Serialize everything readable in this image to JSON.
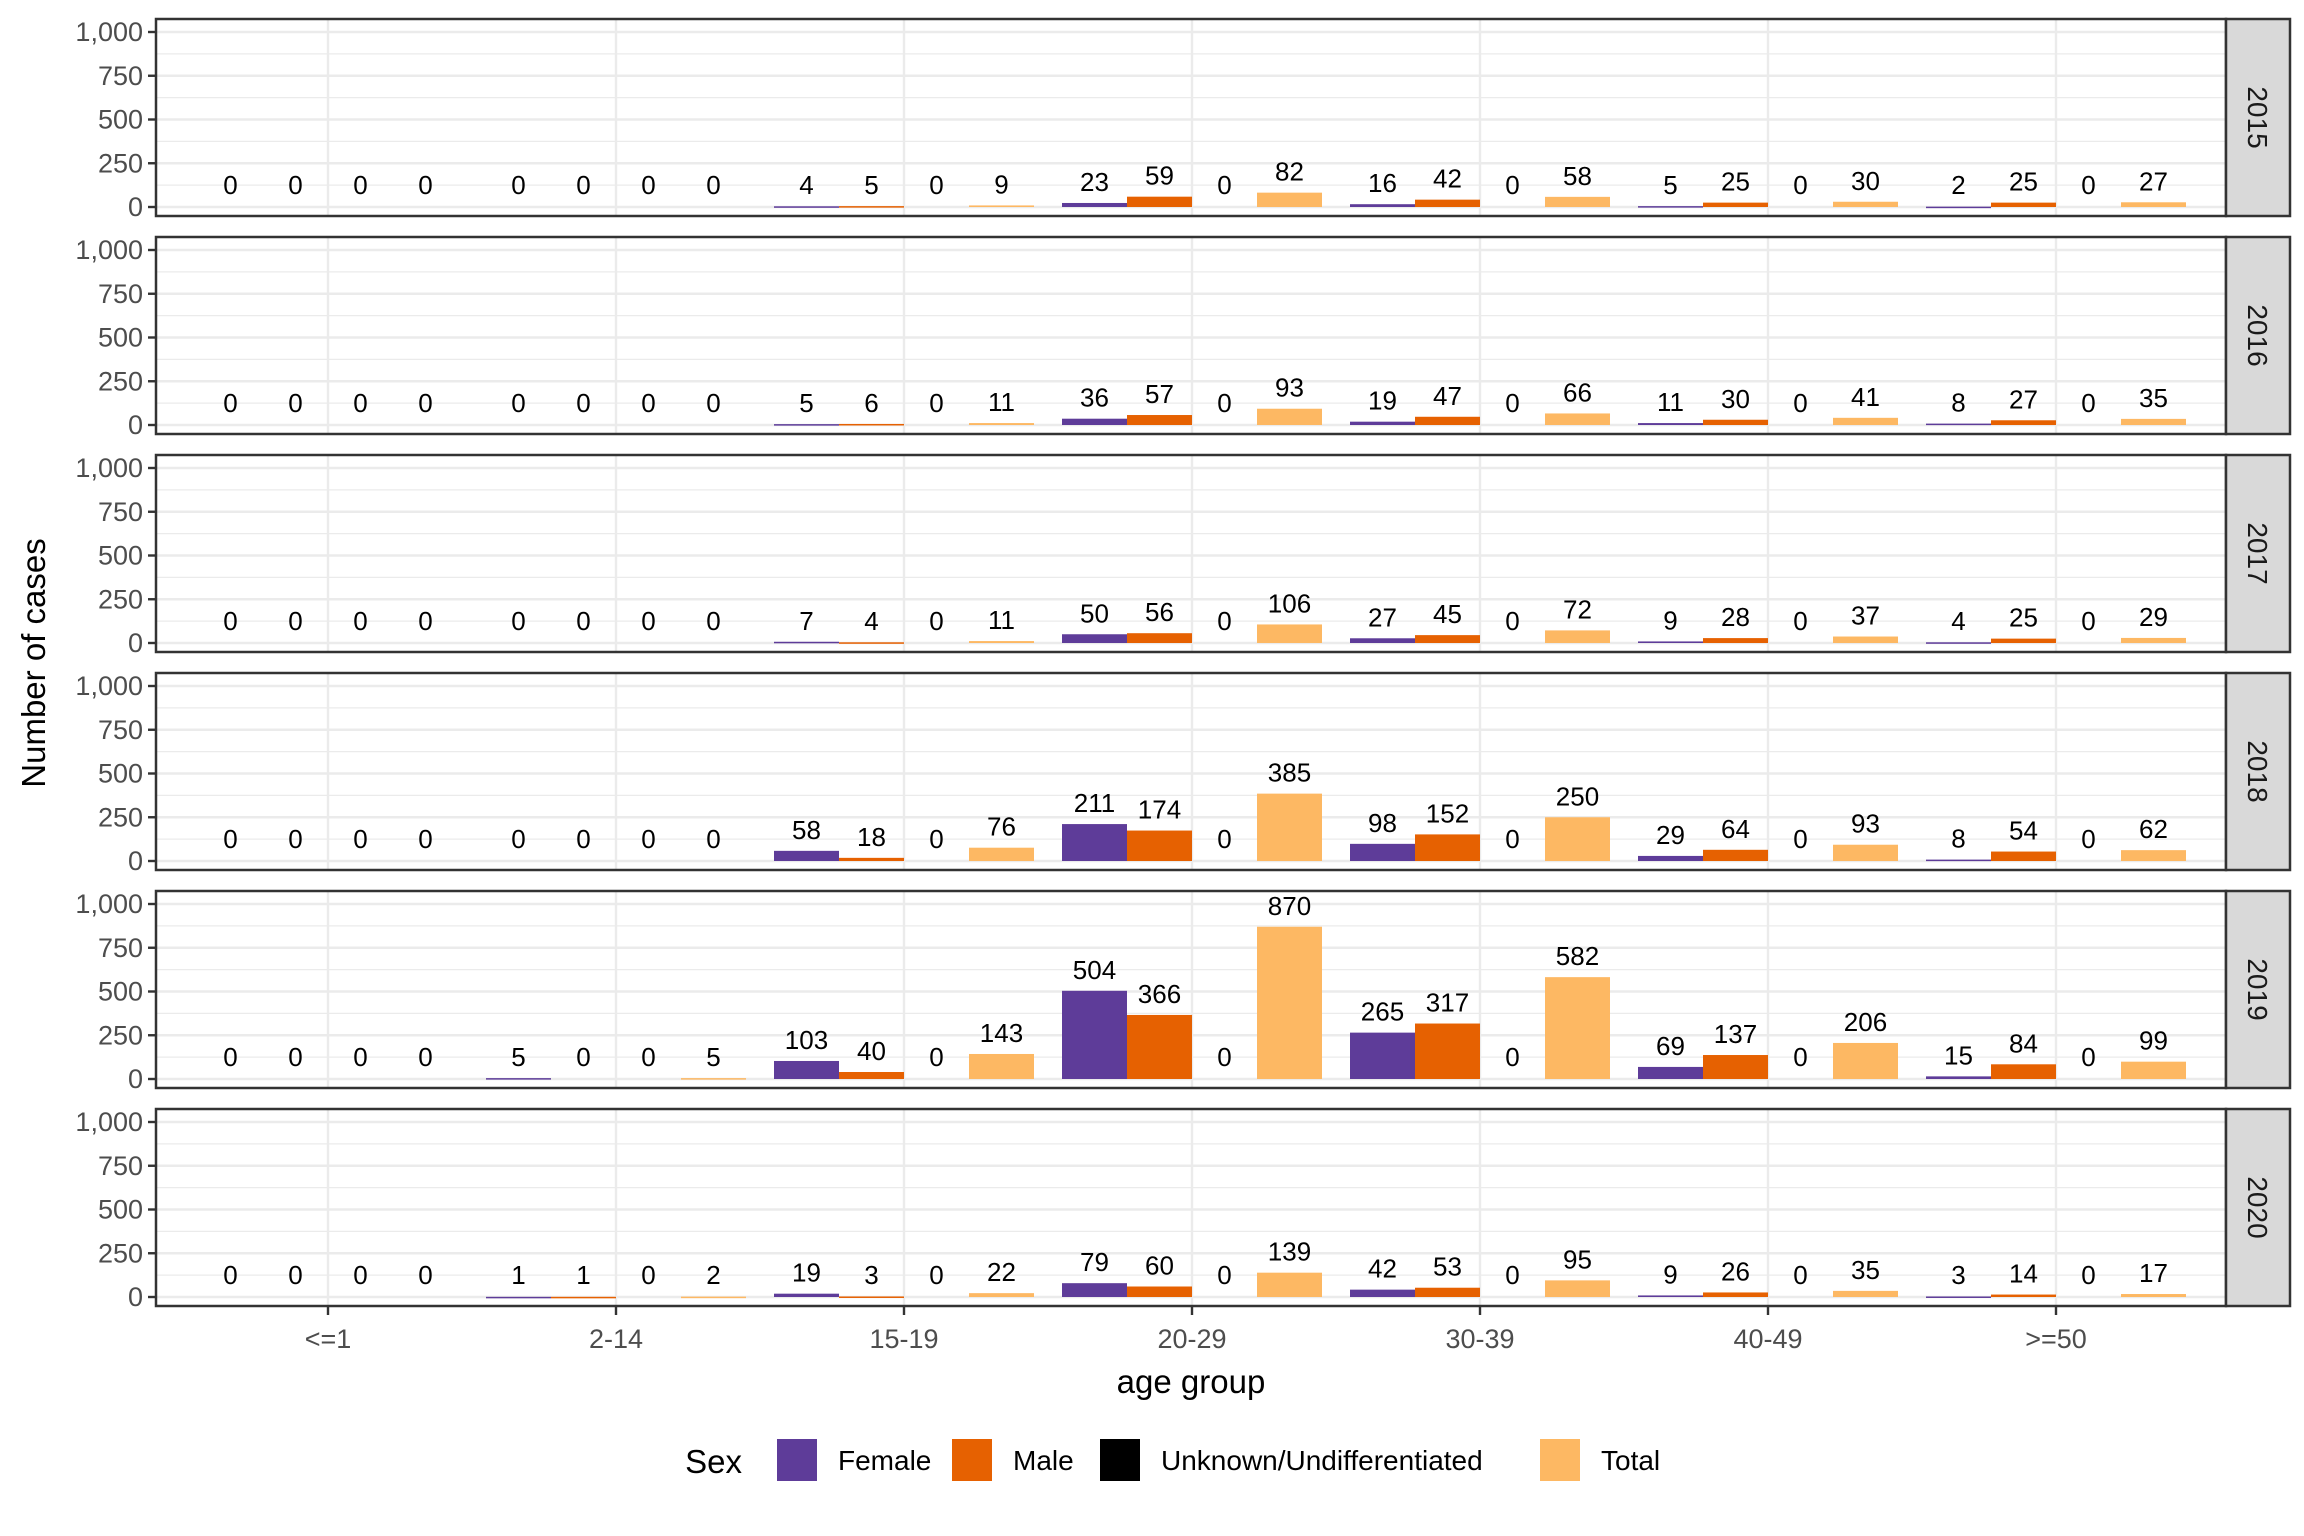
{
  "chart_data": {
    "type": "bar",
    "layout": "faceted-rows",
    "facet_variable": "year",
    "facets": [
      "2015",
      "2016",
      "2017",
      "2018",
      "2019",
      "2020"
    ],
    "categories": [
      "<=1",
      "2-14",
      "15-19",
      "20-29",
      "30-39",
      "40-49",
      ">=50"
    ],
    "xlabel": "age group",
    "ylabel": "Number of cases",
    "ylim": [
      0,
      1040
    ],
    "yticks": [
      0,
      250,
      500,
      750,
      1000
    ],
    "ytick_labels": [
      "0",
      "250",
      "500",
      "750",
      "1,000"
    ],
    "grid": true,
    "legend": {
      "title": "Sex",
      "placement": "bottom",
      "entries": [
        {
          "name": "Female",
          "color": "#5e3c99"
        },
        {
          "name": "Male",
          "color": "#e66101"
        },
        {
          "name": "Unknown/Undifferentiated",
          "color": "#000000"
        },
        {
          "name": "Total",
          "color": "#fdb863"
        }
      ]
    },
    "panels": [
      {
        "facet": "2015",
        "series": [
          {
            "name": "Female",
            "values": [
              0,
              0,
              4,
              23,
              16,
              5,
              2
            ]
          },
          {
            "name": "Male",
            "values": [
              0,
              0,
              5,
              59,
              42,
              25,
              25
            ]
          },
          {
            "name": "Unknown/Undifferentiated",
            "values": [
              0,
              0,
              0,
              0,
              0,
              0,
              0
            ]
          },
          {
            "name": "Total",
            "values": [
              0,
              0,
              9,
              82,
              58,
              30,
              27
            ]
          }
        ]
      },
      {
        "facet": "2016",
        "series": [
          {
            "name": "Female",
            "values": [
              0,
              0,
              5,
              36,
              19,
              11,
              8
            ]
          },
          {
            "name": "Male",
            "values": [
              0,
              0,
              6,
              57,
              47,
              30,
              27
            ]
          },
          {
            "name": "Unknown/Undifferentiated",
            "values": [
              0,
              0,
              0,
              0,
              0,
              0,
              0
            ]
          },
          {
            "name": "Total",
            "values": [
              0,
              0,
              11,
              93,
              66,
              41,
              35
            ]
          }
        ]
      },
      {
        "facet": "2017",
        "series": [
          {
            "name": "Female",
            "values": [
              0,
              0,
              7,
              50,
              27,
              9,
              4
            ]
          },
          {
            "name": "Male",
            "values": [
              0,
              0,
              4,
              56,
              45,
              28,
              25
            ]
          },
          {
            "name": "Unknown/Undifferentiated",
            "values": [
              0,
              0,
              0,
              0,
              0,
              0,
              0
            ]
          },
          {
            "name": "Total",
            "values": [
              0,
              0,
              11,
              106,
              72,
              37,
              29
            ]
          }
        ]
      },
      {
        "facet": "2018",
        "series": [
          {
            "name": "Female",
            "values": [
              0,
              0,
              58,
              211,
              98,
              29,
              8
            ]
          },
          {
            "name": "Male",
            "values": [
              0,
              0,
              18,
              174,
              152,
              64,
              54
            ]
          },
          {
            "name": "Unknown/Undifferentiated",
            "values": [
              0,
              0,
              0,
              0,
              0,
              0,
              0
            ]
          },
          {
            "name": "Total",
            "values": [
              0,
              0,
              76,
              385,
              250,
              93,
              62
            ]
          }
        ]
      },
      {
        "facet": "2019",
        "series": [
          {
            "name": "Female",
            "values": [
              0,
              5,
              103,
              504,
              265,
              69,
              15
            ]
          },
          {
            "name": "Male",
            "values": [
              0,
              0,
              40,
              366,
              317,
              137,
              84
            ]
          },
          {
            "name": "Unknown/Undifferentiated",
            "values": [
              0,
              0,
              0,
              0,
              0,
              0,
              0
            ]
          },
          {
            "name": "Total",
            "values": [
              0,
              5,
              143,
              870,
              582,
              206,
              99
            ]
          }
        ]
      },
      {
        "facet": "2020",
        "series": [
          {
            "name": "Female",
            "values": [
              0,
              1,
              19,
              79,
              42,
              9,
              3
            ]
          },
          {
            "name": "Male",
            "values": [
              0,
              1,
              3,
              60,
              53,
              26,
              14
            ]
          },
          {
            "name": "Unknown/Undifferentiated",
            "values": [
              0,
              0,
              0,
              0,
              0,
              0,
              0
            ]
          },
          {
            "name": "Total",
            "values": [
              0,
              2,
              22,
              139,
              95,
              35,
              17
            ]
          }
        ]
      }
    ]
  }
}
